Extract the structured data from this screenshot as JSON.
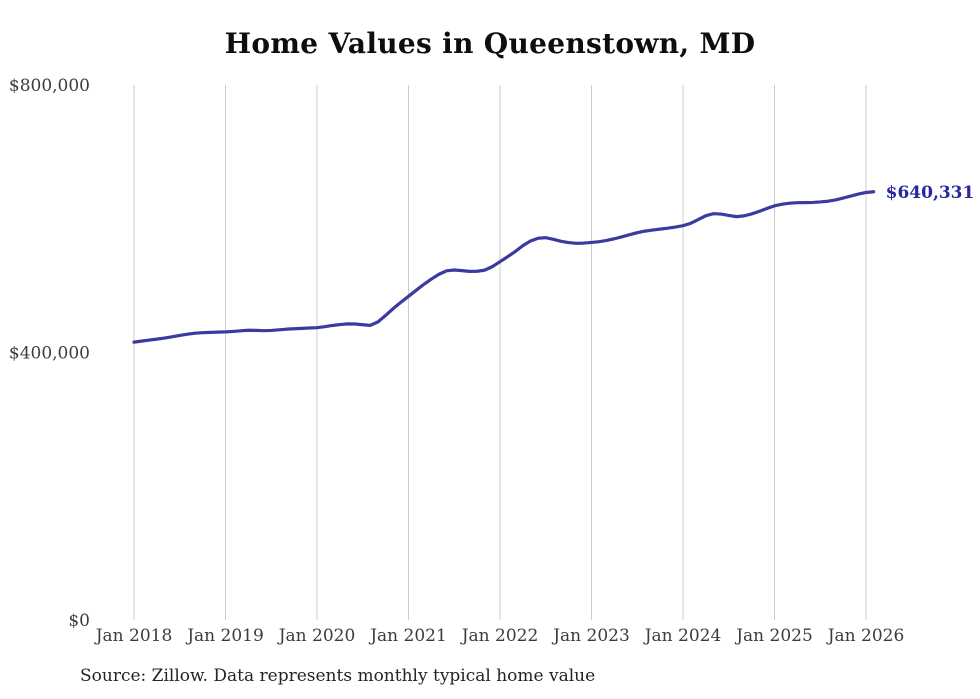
{
  "title": "Home Values in Queenstown, MD",
  "source_note": "Source: Zillow. Data represents monthly typical home value",
  "end_label": "$640,331",
  "colors": {
    "line": "#3c3a9e",
    "end_label": "#28289b",
    "grid": "#cccccc",
    "axis_text": "#3c3c3c",
    "title_text": "#0e0e0e",
    "source_text": "#242424",
    "background": "#ffffff"
  },
  "chart_data": {
    "type": "line",
    "title": "Home Values in Queenstown, MD",
    "xlabel": "",
    "ylabel": "",
    "x_tick_labels": [
      "Jan 2018",
      "Jan 2019",
      "Jan 2020",
      "Jan 2021",
      "Jan 2022",
      "Jan 2023",
      "Jan 2024",
      "Jan 2025",
      "Jan 2026"
    ],
    "y_ticks": [
      0,
      400000,
      800000
    ],
    "y_tick_labels": [
      "$0",
      "$400,000",
      "$800,000"
    ],
    "ylim": [
      0,
      800000
    ],
    "grid": "vertical-only",
    "legend": "none",
    "x_start_month": "Jan 2018",
    "x_end_month": "Feb 2026",
    "points_per_year": 12,
    "end_value": 640331,
    "series": [
      {
        "name": "Typical home value",
        "values": [
          415500,
          417000,
          418600,
          420000,
          421600,
          423500,
          425500,
          427400,
          428900,
          429600,
          430100,
          430500,
          430800,
          431500,
          432400,
          433300,
          433100,
          432600,
          433000,
          433900,
          434900,
          435500,
          436100,
          436600,
          437100,
          438600,
          440400,
          441800,
          442800,
          442600,
          441500,
          440600,
          445800,
          455500,
          465800,
          475200,
          484000,
          493000,
          501800,
          509800,
          517000,
          522200,
          523400,
          522400,
          521300,
          521500,
          523200,
          528400,
          535800,
          543200,
          551000,
          559800,
          566800,
          570800,
          571700,
          569300,
          566200,
          564400,
          563300,
          563600,
          564600,
          565700,
          567600,
          570100,
          573000,
          576100,
          579100,
          581500,
          583100,
          584500,
          585900,
          587600,
          589600,
          593100,
          598800,
          604600,
          607600,
          607000,
          604900,
          603200,
          604300,
          607200,
          611000,
          615400,
          619300,
          621800,
          623300,
          624000,
          624100,
          624400,
          625100,
          626200,
          628100,
          630900,
          633900,
          636900,
          639300,
          640331
        ]
      }
    ]
  }
}
